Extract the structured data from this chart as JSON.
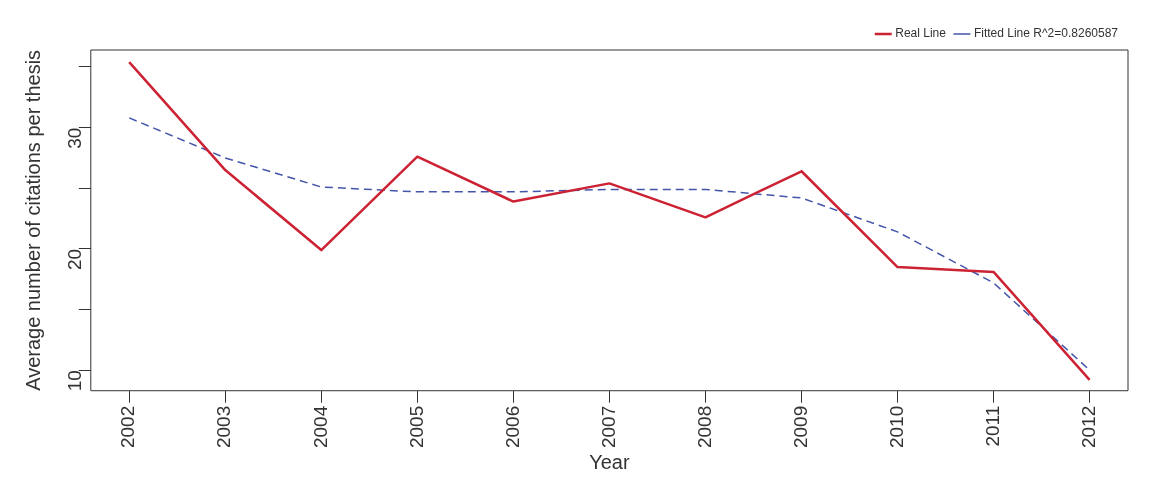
{
  "chart_data": {
    "type": "line",
    "xlabel": "Year",
    "ylabel": "Average number of citations per thesis",
    "x": [
      2002,
      2003,
      2004,
      2005,
      2006,
      2007,
      2008,
      2009,
      2010,
      2011,
      2012
    ],
    "xlim": [
      2001.6,
      2012.4
    ],
    "xticks": [
      2002,
      2003,
      2004,
      2005,
      2006,
      2007,
      2008,
      2009,
      2010,
      2011,
      2012
    ],
    "ylim": [
      8.3,
      36.4
    ],
    "yticks": [
      10,
      {
        "value": 15,
        "label": null
      },
      20,
      {
        "value": 25,
        "label": null
      },
      30,
      {
        "value": 35,
        "label": null
      }
    ],
    "grid": false,
    "legend": "top right",
    "marker": "none",
    "series": [
      {
        "name": "Real Line",
        "color": "#cc2233",
        "line_style": "solid",
        "values": [
          35.4,
          26.5,
          19.9,
          27.6,
          23.9,
          25.4,
          22.6,
          26.4,
          18.5,
          18.1,
          9.2
        ]
      },
      {
        "name": "Fitted Line R^2=0.8260587",
        "color": "#4455aa",
        "line_style": "dashed",
        "values": [
          30.8,
          27.5,
          25.1,
          24.7,
          24.7,
          24.9,
          24.9,
          24.2,
          21.4,
          17.2,
          10
        ]
      }
    ]
  }
}
